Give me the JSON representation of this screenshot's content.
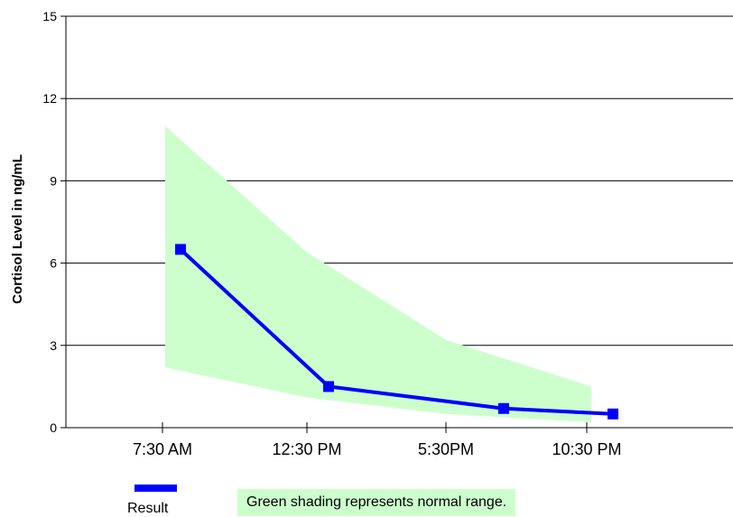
{
  "chart_data": {
    "type": "line",
    "title": "",
    "xlabel": "",
    "ylabel": "Cortisol Level in ng/mL",
    "categories": [
      "7:30 AM",
      "12:30 PM",
      "5:30PM",
      "10:30 PM"
    ],
    "ylim": [
      0,
      15
    ],
    "yticks": [
      0,
      3,
      6,
      9,
      12,
      15
    ],
    "grid": "horizontal",
    "series": [
      {
        "name": "Result",
        "color": "#0000ff",
        "points": [
          {
            "x": "7:30 AM",
            "y": 6.5
          },
          {
            "x": "12:30 PM",
            "y": 1.5
          },
          {
            "x": "5:30PM",
            "y": 0.7
          },
          {
            "x": "10:30 PM",
            "y": 0.5
          }
        ]
      }
    ],
    "normal_range": {
      "color": "#ccffcc",
      "upper": [
        {
          "x": "7:30 AM",
          "y": 11.0
        },
        {
          "x": "12:30 PM",
          "y": 6.4
        },
        {
          "x": "5:30PM",
          "y": 3.2
        },
        {
          "x": "10:30 PM",
          "y": 1.5
        }
      ],
      "lower": [
        {
          "x": "7:30 AM",
          "y": 2.2
        },
        {
          "x": "12:30 PM",
          "y": 1.1
        },
        {
          "x": "5:30PM",
          "y": 0.5
        },
        {
          "x": "10:30 PM",
          "y": 0.2
        }
      ]
    },
    "legend": {
      "position": "bottom-left",
      "label": "Result",
      "note": "Green shading represents normal range."
    }
  }
}
